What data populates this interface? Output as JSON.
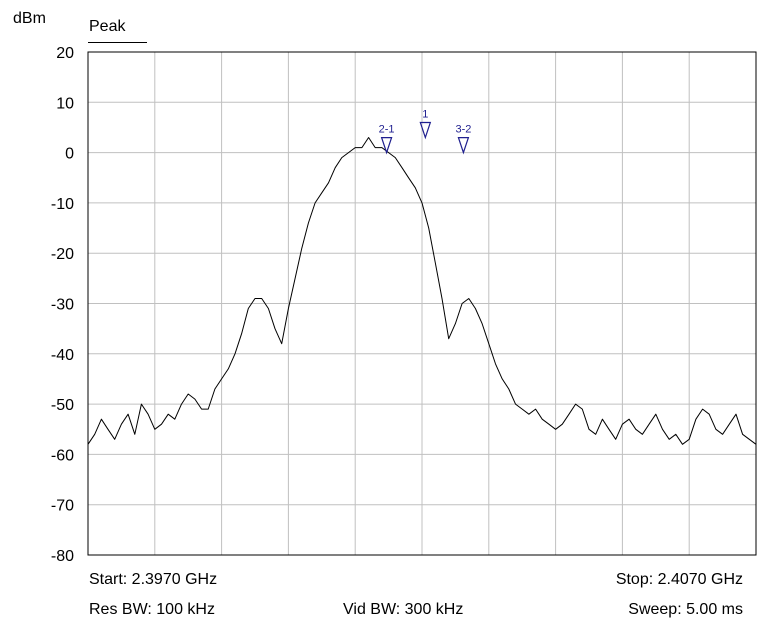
{
  "header": {
    "unit_label": "dBm",
    "trace_mode": "Peak"
  },
  "footer": {
    "start": "Start: 2.3970 GHz",
    "stop": "Stop: 2.4070 GHz",
    "res_bw": "Res BW: 100 kHz",
    "vid_bw": "Vid BW: 300 kHz",
    "sweep": "Sweep: 5.00 ms"
  },
  "colors": {
    "trace": "#000000",
    "grid": "#c0c0c0",
    "marker": "#1f1f8f"
  },
  "chart_data": {
    "type": "line",
    "title": "",
    "xlabel": "",
    "ylabel": "dBm",
    "xlim": [
      2.397,
      2.407
    ],
    "ylim": [
      -80,
      20
    ],
    "y_ticks": [
      20,
      10,
      0,
      -10,
      -20,
      -30,
      -40,
      -50,
      -60,
      -70,
      -80
    ],
    "y_tick_labels": [
      "20",
      "10",
      "0",
      "-10",
      "-20",
      "-30",
      "-40",
      "-50",
      "-60",
      "-70",
      "-80"
    ],
    "x_divisions": 10,
    "grid": true,
    "series": [
      {
        "x": [
          2.397,
          2.3971,
          2.3972,
          2.3973,
          2.3974,
          2.3975,
          2.3976,
          2.3977,
          2.3978,
          2.3979,
          2.398,
          2.3981,
          2.3982,
          2.3983,
          2.3984,
          2.3985,
          2.3986,
          2.3987,
          2.3988,
          2.3989,
          2.399,
          2.3991,
          2.3992,
          2.3993,
          2.3994,
          2.3995,
          2.3996,
          2.3997,
          2.3998,
          2.3999,
          2.4,
          2.4001,
          2.4002,
          2.4003,
          2.4004,
          2.4005,
          2.4006,
          2.4007,
          2.4008,
          2.4009,
          2.401,
          2.4011,
          2.4012,
          2.4013,
          2.4014,
          2.4015,
          2.4016,
          2.4017,
          2.4018,
          2.4019,
          2.402,
          2.4021,
          2.4022,
          2.4023,
          2.4024,
          2.4025,
          2.4026,
          2.4027,
          2.4028,
          2.4029,
          2.403,
          2.4031,
          2.4032,
          2.4033,
          2.4034,
          2.4035,
          2.4036,
          2.4037,
          2.4038,
          2.4039,
          2.404,
          2.4041,
          2.4042,
          2.4043,
          2.4044,
          2.4045,
          2.4046,
          2.4047,
          2.4048,
          2.4049,
          2.405,
          2.4051,
          2.4052,
          2.4053,
          2.4054,
          2.4055,
          2.4056,
          2.4057,
          2.4058,
          2.4059,
          2.406,
          2.4061,
          2.4062,
          2.4063,
          2.4064,
          2.4065,
          2.4066,
          2.4067,
          2.4068,
          2.4069,
          2.407
        ],
        "y": [
          -58,
          -56,
          -53,
          -55,
          -57,
          -54,
          -52,
          -56,
          -50,
          -52,
          -55,
          -54,
          -52,
          -53,
          -50,
          -48,
          -49,
          -51,
          -51,
          -47,
          -45,
          -43,
          -40,
          -36,
          -31,
          -29,
          -29,
          -31,
          -35,
          -38,
          -31,
          -25,
          -19,
          -14,
          -10,
          -8,
          -6,
          -3,
          -1,
          0,
          1,
          1,
          3,
          1,
          1,
          0,
          -1,
          -3,
          -5,
          -7,
          -10,
          -15,
          -22,
          -29,
          -37,
          -34,
          -30,
          -29,
          -31,
          -34,
          -38,
          -42,
          -45,
          -47,
          -50,
          -51,
          -52,
          -51,
          -53,
          -54,
          -55,
          -54,
          -52,
          -50,
          -51,
          -55,
          -56,
          -53,
          -55,
          -57,
          -54,
          -53,
          -55,
          -56,
          -54,
          -52,
          -55,
          -57,
          -56,
          -58,
          -57,
          -53,
          -51,
          -52,
          -55,
          -56,
          -54,
          -52,
          -56,
          -57,
          -58
        ]
      }
    ],
    "markers": [
      {
        "label": "1",
        "x": 2.40205,
        "y": 3
      },
      {
        "label": "2-1",
        "x": 2.40147,
        "y": 0
      },
      {
        "label": "3-2",
        "x": 2.40262,
        "y": 0
      }
    ]
  }
}
